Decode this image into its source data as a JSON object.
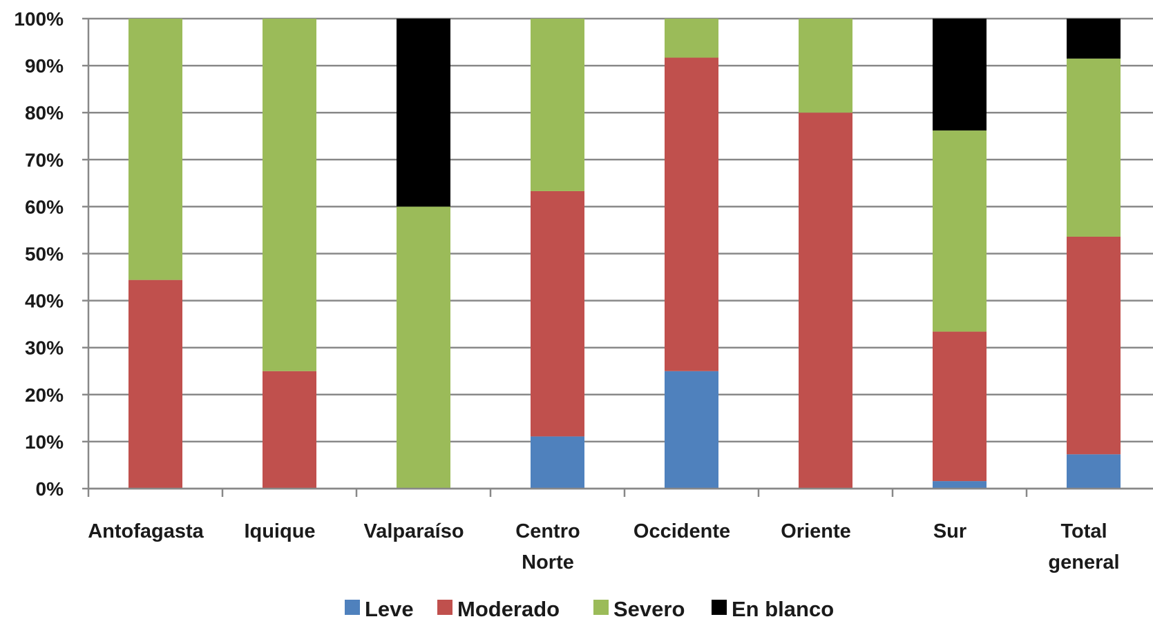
{
  "chart_data": {
    "type": "bar",
    "stacked": true,
    "percent": true,
    "categories": [
      [
        "Antofagasta"
      ],
      [
        "Iquique"
      ],
      [
        "Valparaíso"
      ],
      [
        "Centro",
        "Norte"
      ],
      [
        "Occidente"
      ],
      [
        "Oriente"
      ],
      [
        "Sur"
      ],
      [
        "Total",
        "general"
      ]
    ],
    "series": [
      {
        "name": "Leve",
        "color": "#4F81BD",
        "values": [
          0,
          0,
          0,
          11.1,
          25,
          0,
          1.6,
          7.3
        ]
      },
      {
        "name": "Moderado",
        "color": "#C0504D",
        "values": [
          44.4,
          25,
          0,
          52.2,
          66.7,
          80,
          31.8,
          46.3
        ]
      },
      {
        "name": "Severo",
        "color": "#9BBB59",
        "values": [
          55.6,
          75,
          60,
          36.7,
          8.3,
          20,
          42.8,
          37.9
        ]
      },
      {
        "name": "En blanco",
        "color": "#000000",
        "values": [
          0,
          0,
          40,
          0,
          0,
          0,
          23.8,
          8.5
        ]
      }
    ],
    "y_ticks": [
      "0%",
      "10%",
      "20%",
      "30%",
      "40%",
      "50%",
      "60%",
      "70%",
      "80%",
      "90%",
      "100%"
    ],
    "ylim": [
      0,
      100
    ],
    "grid": true,
    "legend_position": "bottom",
    "title": "",
    "xlabel": "",
    "ylabel": ""
  }
}
